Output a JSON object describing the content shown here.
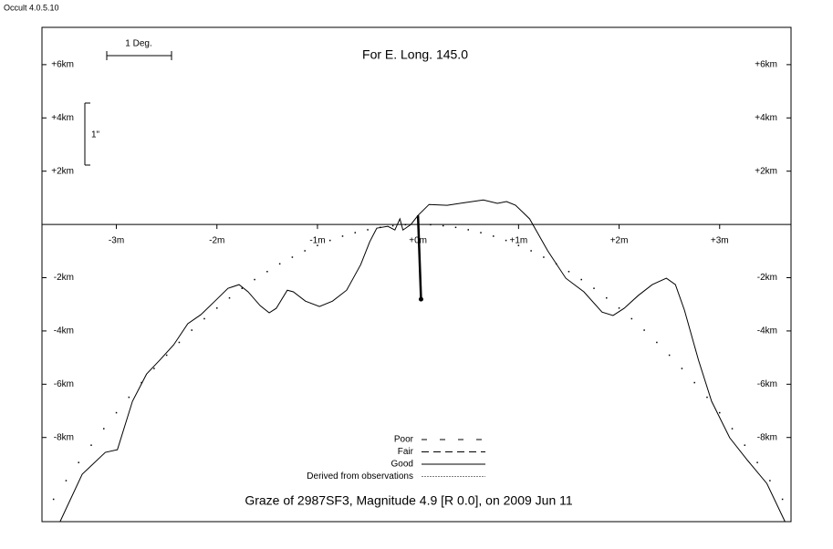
{
  "app_title": "Occult 4.0.5.10",
  "chart_data": {
    "type": "line",
    "title": "For E. Long. 145.0",
    "subtitle": "Graze of  2987SF3,  Magnitude 4.9 [R 0.0],  on 2009 Jun 11",
    "scale_labels": [
      "1 Deg.",
      "1\""
    ],
    "xlim": [
      -3.74,
      3.71
    ],
    "ylim": [
      -11.16,
      7.4
    ],
    "xticks": [
      {
        "value": -3,
        "label": "-3m"
      },
      {
        "value": -2,
        "label": "-2m"
      },
      {
        "value": -1,
        "label": "-1m"
      },
      {
        "value": 0,
        "label": "+0m"
      },
      {
        "value": 1,
        "label": "+1m"
      },
      {
        "value": 2,
        "label": "+2m"
      },
      {
        "value": 3,
        "label": "+3m"
      }
    ],
    "yticks": [
      {
        "value": 6,
        "label": "+6km"
      },
      {
        "value": 4,
        "label": "+4km"
      },
      {
        "value": 2,
        "label": "+2km"
      },
      {
        "value": -2,
        "label": "-2km"
      },
      {
        "value": -4,
        "label": "-4km"
      },
      {
        "value": -6,
        "label": "-6km"
      },
      {
        "value": -8,
        "label": "-8km"
      }
    ],
    "legend": [
      {
        "label": "Poor",
        "dash": "6,14",
        "width": 1
      },
      {
        "label": "Fair",
        "dash": "8,5",
        "width": 1
      },
      {
        "label": "Good",
        "dash": "none",
        "width": 1
      },
      {
        "label": "Derived from observations",
        "dash": "2,1",
        "width": 0.6
      }
    ],
    "series": [
      {
        "style": "line",
        "color": "#000000",
        "x": [
          -3.56,
          -3.34,
          -3.11,
          -2.99,
          -2.84,
          -2.7,
          -2.57,
          -2.43,
          -2.29,
          -2.16,
          -2.02,
          -1.89,
          -1.78,
          -1.69,
          -1.57,
          -1.48,
          -1.41,
          -1.3,
          -1.24,
          -1.12,
          -0.98,
          -0.85,
          -0.71,
          -0.57,
          -0.48,
          -0.41,
          -0.3,
          -0.23,
          -0.18,
          -0.15,
          -0.07,
          0,
          0.11,
          0.29,
          0.47,
          0.65,
          0.79,
          0.88,
          0.97,
          1.11,
          1.29,
          1.47,
          1.65,
          1.83,
          1.94,
          2.05,
          2.19,
          2.33,
          2.47,
          2.56,
          2.65,
          2.79,
          2.92,
          3.1,
          3.28,
          3.47,
          3.65
        ],
        "values": [
          -11.16,
          -9.38,
          -8.56,
          -8.46,
          -6.64,
          -5.62,
          -5.1,
          -4.52,
          -3.73,
          -3.39,
          -2.88,
          -2.4,
          -2.26,
          -2.53,
          -3.05,
          -3.32,
          -3.15,
          -2.47,
          -2.53,
          -2.88,
          -3.08,
          -2.88,
          -2.47,
          -1.51,
          -0.65,
          -0.14,
          -0.07,
          -0.21,
          0.21,
          -0.21,
          0,
          0.34,
          0.75,
          0.72,
          0.82,
          0.92,
          0.79,
          0.86,
          0.72,
          0.21,
          -0.99,
          -2.02,
          -2.53,
          -3.29,
          -3.42,
          -3.15,
          -2.67,
          -2.26,
          -2.02,
          -2.26,
          -3.22,
          -5.1,
          -6.64,
          -8.01,
          -8.87,
          -9.73,
          -11.16
        ]
      },
      {
        "style": "dots",
        "color": "#000000",
        "x": [
          -3.625,
          -3.5,
          -3.375,
          -3.25,
          -3.125,
          -3,
          -2.875,
          -2.75,
          -2.625,
          -2.5,
          -2.375,
          -2.25,
          -2.125,
          -2,
          -1.875,
          -1.75,
          -1.625,
          -1.5,
          -1.375,
          -1.25,
          -1.125,
          -1,
          -0.875,
          -0.75,
          -0.625,
          -0.5,
          -0.375,
          -0.25,
          -0.125,
          0,
          0.125,
          0.25,
          0.375,
          0.5,
          0.625,
          0.75,
          0.875,
          1,
          1.125,
          1.25,
          1.375,
          1.5,
          1.625,
          1.75,
          1.875,
          2,
          2.125,
          2.25,
          2.375,
          2.5,
          2.625,
          2.75,
          2.875,
          3,
          3.125,
          3.25,
          3.375,
          3.5,
          3.625
        ],
        "values": [
          -10.32,
          -9.62,
          -8.94,
          -8.29,
          -7.67,
          -7.07,
          -6.49,
          -5.94,
          -5.41,
          -4.91,
          -4.43,
          -3.97,
          -3.54,
          -3.14,
          -2.76,
          -2.4,
          -2.07,
          -1.77,
          -1.48,
          -1.23,
          -0.99,
          -0.79,
          -0.6,
          -0.44,
          -0.31,
          -0.2,
          -0.11,
          -0.05,
          -0.01,
          0,
          -0.01,
          -0.05,
          -0.11,
          -0.2,
          -0.31,
          -0.44,
          -0.6,
          -0.79,
          -0.99,
          -1.23,
          -1.48,
          -1.77,
          -2.07,
          -2.4,
          -2.76,
          -3.14,
          -3.54,
          -3.97,
          -4.43,
          -4.91,
          -5.41,
          -5.94,
          -6.49,
          -7.07,
          -7.67,
          -8.29,
          -8.94,
          -9.62,
          -10.32
        ]
      }
    ],
    "event": {
      "x": [
        0,
        0.03
      ],
      "values": [
        0.34,
        -2.81
      ]
    }
  }
}
